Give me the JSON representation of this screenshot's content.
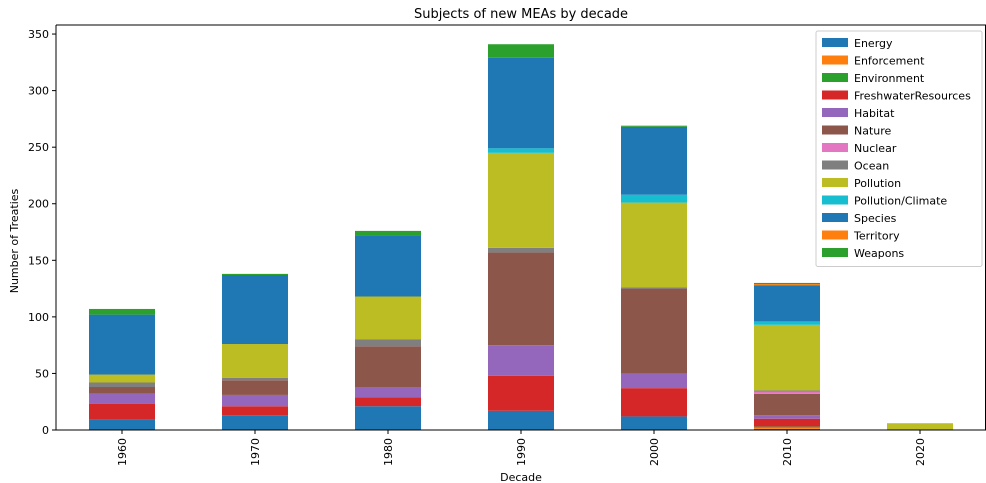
{
  "chart_data": {
    "type": "bar",
    "stacked": true,
    "title": "Subjects of new MEAs by decade",
    "xlabel": "Decade",
    "ylabel": "Number of Treaties",
    "ylim": [
      0,
      358
    ],
    "yticks": [
      0,
      50,
      100,
      150,
      200,
      250,
      300,
      350
    ],
    "categories": [
      "1960",
      "1970",
      "1980",
      "1990",
      "2000",
      "2010",
      "2020"
    ],
    "legend_position": "top-right",
    "series": [
      {
        "name": "Energy",
        "color": "#1f77b4",
        "values": [
          9,
          13,
          21,
          17,
          12,
          1,
          0
        ]
      },
      {
        "name": "Enforcement",
        "color": "#ff7f0e",
        "values": [
          0,
          0,
          0,
          0,
          0,
          1,
          0
        ]
      },
      {
        "name": "Environment",
        "color": "#2ca02c",
        "values": [
          0,
          0,
          0,
          0,
          0,
          1,
          0
        ]
      },
      {
        "name": "FreshwaterResources",
        "color": "#d62728",
        "values": [
          14,
          8,
          8,
          31,
          25,
          7,
          0
        ]
      },
      {
        "name": "Habitat",
        "color": "#9467bd",
        "values": [
          9,
          10,
          9,
          27,
          13,
          3,
          0
        ]
      },
      {
        "name": "Nature",
        "color": "#8c564b",
        "values": [
          6,
          13,
          36,
          82,
          75,
          19,
          0
        ]
      },
      {
        "name": "Nuclear",
        "color": "#e377c2",
        "values": [
          0,
          0,
          0,
          0,
          0,
          2,
          0
        ]
      },
      {
        "name": "Ocean",
        "color": "#7f7f7f",
        "values": [
          4,
          2,
          6,
          4,
          1,
          1,
          0
        ]
      },
      {
        "name": "Pollution",
        "color": "#bcbd22",
        "values": [
          7,
          30,
          38,
          84,
          75,
          58,
          6
        ]
      },
      {
        "name": "Pollution/Climate",
        "color": "#17becf",
        "values": [
          0,
          0,
          0,
          4,
          7,
          3,
          0
        ]
      },
      {
        "name": "Species",
        "color": "#1f77b4",
        "values": [
          53,
          61,
          54,
          80,
          60,
          32,
          0
        ]
      },
      {
        "name": "Territory",
        "color": "#ff7f0e",
        "values": [
          0,
          0,
          0,
          0,
          0,
          1,
          0
        ]
      },
      {
        "name": "Weapons",
        "color": "#2ca02c",
        "values": [
          5,
          1,
          4,
          12,
          1,
          1,
          0
        ]
      }
    ]
  }
}
